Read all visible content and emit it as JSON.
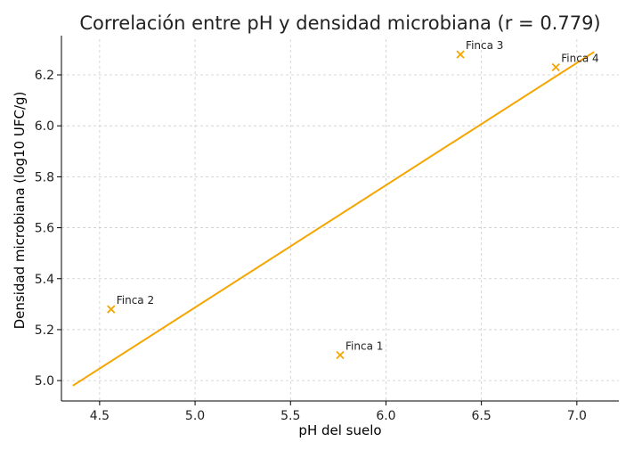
{
  "chart_data": {
    "type": "scatter",
    "title": "Correlación entre pH y densidad microbiana (r = 0.779)",
    "xlabel": "pH del suelo",
    "ylabel": "Densidad microbiana (log10 UFC/g)",
    "xlim": [
      4.3,
      7.22
    ],
    "ylim": [
      4.92,
      6.34
    ],
    "x_ticks": [
      4.5,
      5.0,
      5.5,
      6.0,
      6.5,
      7.0
    ],
    "y_ticks": [
      5.0,
      5.2,
      5.4,
      5.6,
      5.8,
      6.0,
      6.2
    ],
    "x_tick_labels": [
      "4.5",
      "5.0",
      "5.5",
      "6.0",
      "6.5",
      "7.0"
    ],
    "y_tick_labels": [
      "5.0",
      "5.2",
      "5.4",
      "5.6",
      "5.8",
      "6.0",
      "6.2"
    ],
    "grid": true,
    "points": [
      {
        "label": "Finca 1",
        "x": 5.76,
        "y": 5.1
      },
      {
        "label": "Finca 2",
        "x": 4.56,
        "y": 5.28
      },
      {
        "label": "Finca 3",
        "x": 6.39,
        "y": 6.28
      },
      {
        "label": "Finca 4",
        "x": 6.89,
        "y": 6.23
      }
    ],
    "trendline": {
      "x": [
        4.36,
        7.09
      ],
      "y": [
        4.98,
        6.29
      ]
    },
    "color": "#f5a500"
  }
}
